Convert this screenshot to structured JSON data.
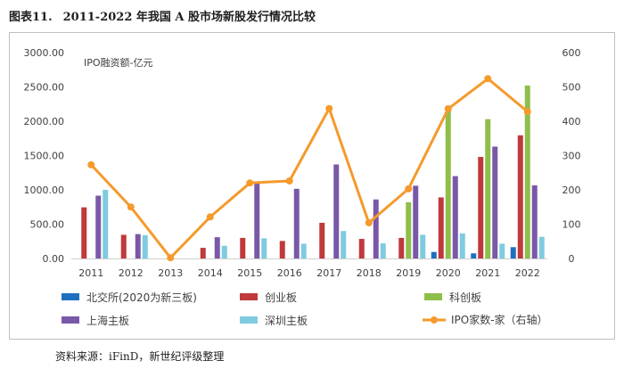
{
  "figure": {
    "number": "图表11.",
    "title": "2011-2022 年我国 A 股市场新股发行情况比较"
  },
  "source": "资料来源：iFinD，新世纪评级整理",
  "chart_data": {
    "type": "bar",
    "categories": [
      "2011",
      "2012",
      "2013",
      "2014",
      "2015",
      "2016",
      "2017",
      "2018",
      "2019",
      "2020",
      "2021",
      "2022"
    ],
    "annotation": "IPO融资额-亿元",
    "y_left": {
      "min": 0,
      "max": 3000,
      "step": 500,
      "tick_labels": [
        "0.00",
        "500.00",
        "1000.00",
        "1500.00",
        "2000.00",
        "2500.00",
        "3000.00"
      ]
    },
    "y_right": {
      "min": 0,
      "max": 600,
      "step": 100,
      "tick_labels": [
        "0",
        "100",
        "200",
        "300",
        "400",
        "500",
        "600"
      ]
    },
    "series": [
      {
        "name": "北交所(2020为新三板)",
        "color": "#1f6fbf",
        "axis": "left",
        "kind": "bar",
        "values": [
          0,
          0,
          0,
          0,
          0,
          0,
          0,
          0,
          0,
          95,
          75,
          165
        ]
      },
      {
        "name": "创业板",
        "color": "#c0393b",
        "axis": "left",
        "kind": "bar",
        "values": [
          745,
          345,
          0,
          155,
          300,
          255,
          520,
          285,
          300,
          890,
          1480,
          1795
        ]
      },
      {
        "name": "科创板",
        "color": "#8fbe4a",
        "axis": "left",
        "kind": "bar",
        "values": [
          0,
          0,
          0,
          0,
          0,
          0,
          0,
          0,
          820,
          2225,
          2030,
          2520
        ]
      },
      {
        "name": "上海主板",
        "color": "#7a58a8",
        "axis": "left",
        "kind": "bar",
        "values": [
          915,
          355,
          0,
          310,
          1100,
          1015,
          1370,
          860,
          1060,
          1200,
          1630,
          1065
        ]
      },
      {
        "name": "深圳主板",
        "color": "#7fcbe0",
        "axis": "left",
        "kind": "bar",
        "values": [
          1000,
          340,
          0,
          185,
          295,
          215,
          400,
          220,
          345,
          365,
          215,
          315
        ]
      },
      {
        "name": "IPO家数-家（右轴）",
        "color": "#f59a2b",
        "axis": "right",
        "kind": "line",
        "values": [
          273,
          150,
          2,
          121,
          220,
          226,
          437,
          104,
          203,
          436,
          524,
          428
        ]
      }
    ]
  }
}
